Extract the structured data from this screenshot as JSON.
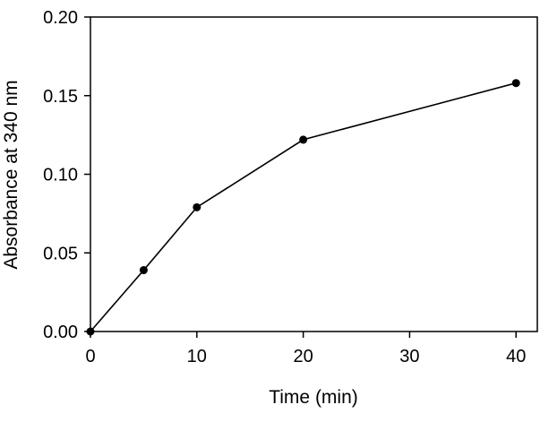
{
  "chart_data": {
    "type": "line",
    "title": "",
    "xlabel": "Time (min)",
    "ylabel": "Absorbance at 340 nm",
    "xlim": [
      0,
      42
    ],
    "ylim": [
      0,
      0.2
    ],
    "x_ticks": [
      0,
      10,
      20,
      30,
      40
    ],
    "x_tick_labels": [
      "0",
      "10",
      "20",
      "30",
      "40"
    ],
    "y_ticks": [
      0,
      0.05,
      0.1,
      0.15,
      0.2
    ],
    "y_tick_labels": [
      "0.00",
      "0.05",
      "0.10",
      "0.15",
      "0.20"
    ],
    "grid": false,
    "legend": "none",
    "series": [
      {
        "x": [
          0,
          5,
          10,
          20,
          40
        ],
        "y": [
          0.0,
          0.039,
          0.079,
          0.122,
          0.158
        ],
        "color": "#000000",
        "marker": "filled-circle"
      }
    ]
  }
}
